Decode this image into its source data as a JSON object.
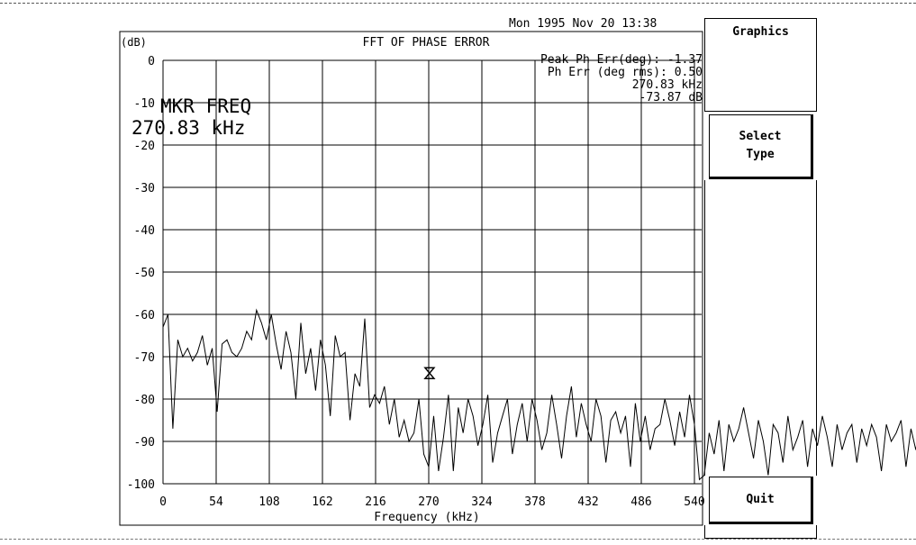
{
  "datetime": "Mon 1995 Nov 20 13:38",
  "softkeys": {
    "menu_title": "Graphics",
    "select_line1": "Select",
    "select_line2": "Type",
    "quit": "Quit"
  },
  "readouts": {
    "peak": "Peak Ph Err(deg): -1.37",
    "rms": "Ph Err (deg rms):  0.50",
    "marker_freq": "270.83 kHz",
    "marker_level": "-73.87 dB"
  },
  "marker": {
    "label": "MKR FREQ",
    "value": "270.83 kHz",
    "x": 270.83,
    "y": -73.87
  },
  "chart_data": {
    "type": "line",
    "title": "FFT OF PHASE ERROR",
    "xlabel": "Frequency (kHz)",
    "ylabel": "(dB)",
    "xlim": [
      0,
      550
    ],
    "ylim": [
      -100,
      0
    ],
    "x_ticks": [
      0,
      54,
      108,
      162,
      216,
      270,
      324,
      378,
      432,
      486,
      540
    ],
    "y_ticks": [
      0,
      -10,
      -20,
      -30,
      -40,
      -50,
      -60,
      -70,
      -80,
      -90,
      -100
    ],
    "y_tick_labels": [
      "0",
      "-10",
      "-20",
      "-30",
      "-40",
      "-50",
      "-60",
      "-70",
      "-80",
      "-90",
      "-100"
    ],
    "grid": true,
    "x_step": 5,
    "y": [
      -63,
      -60,
      -87,
      -66,
      -70,
      -68,
      -71,
      -69,
      -65,
      -72,
      -68,
      -83,
      -67,
      -66,
      -69,
      -70,
      -68,
      -64,
      -66,
      -59,
      -62,
      -66,
      -60,
      -67,
      -73,
      -64,
      -69,
      -80,
      -62,
      -74,
      -68,
      -78,
      -66,
      -72,
      -84,
      -65,
      -70,
      -69,
      -85,
      -74,
      -77,
      -61,
      -82,
      -79,
      -81,
      -77,
      -86,
      -80,
      -89,
      -85,
      -90,
      -88,
      -80,
      -93,
      -96,
      -84,
      -97,
      -89,
      -79,
      -97,
      -82,
      -88,
      -80,
      -84,
      -91,
      -86,
      -79,
      -95,
      -88,
      -84,
      -80,
      -93,
      -86,
      -81,
      -90,
      -80,
      -85,
      -92,
      -88,
      -79,
      -86,
      -94,
      -84,
      -77,
      -89,
      -81,
      -86,
      -90,
      -80,
      -84,
      -95,
      -85,
      -83,
      -88,
      -84,
      -96,
      -81,
      -90,
      -84,
      -92,
      -87,
      -86,
      -80,
      -85,
      -91,
      -83,
      -89,
      -79,
      -86,
      -99,
      -98,
      -88,
      -93,
      -85,
      -97,
      -86,
      -90,
      -87,
      -82,
      -88,
      -94,
      -85,
      -90,
      -98,
      -86,
      -88,
      -95,
      -84,
      -92,
      -89,
      -85,
      -96,
      -87,
      -91,
      -84,
      -89,
      -96,
      -86,
      -92,
      -88,
      -86,
      -95,
      -87,
      -91,
      -86,
      -89,
      -97,
      -86,
      -90,
      -88,
      -85,
      -96,
      -87,
      -92,
      -85,
      -89,
      -95,
      -86,
      -90,
      -88,
      -86,
      -97,
      -88,
      -93,
      -85,
      -90,
      -96,
      -86,
      -91,
      -88,
      -95,
      -86,
      -90,
      -87,
      -94,
      -86,
      -91,
      -89,
      -85,
      -96,
      -88,
      -92,
      -86,
      -90,
      -95,
      -87,
      -91,
      -86,
      -89,
      -97,
      -86,
      -92,
      -87,
      -90,
      -95,
      -86,
      -91,
      -88,
      -94,
      -86,
      -90,
      -87,
      -95,
      -86,
      -92,
      -88,
      -90,
      -96,
      -86,
      -91,
      -87,
      -93,
      -88,
      -90,
      -95,
      -86,
      -92,
      -88,
      -91,
      -96,
      -87,
      -90,
      -88,
      -93,
      -86,
      -91,
      -89,
      -95,
      -87,
      -91,
      -88,
      -94,
      -86,
      -92,
      -88,
      -90,
      -96,
      -86,
      -91,
      -87,
      -93,
      -88,
      -90,
      -95,
      -86,
      -92,
      -88,
      -91,
      -96,
      -87,
      -90,
      -88,
      -93,
      -86,
      -91,
      -89,
      -95,
      -87,
      -91,
      -88,
      -94,
      -86,
      -92,
      -88,
      -90,
      -96,
      -86,
      -91,
      -87,
      -93,
      -88,
      -90,
      -95,
      -86,
      -92,
      -88,
      -91,
      -96,
      -87,
      -90,
      -88,
      -93,
      -86,
      -91,
      -89,
      -95,
      -87,
      -91,
      -88,
      -94,
      -86,
      -92,
      -88,
      -90,
      -96,
      -86,
      -91,
      -87,
      -93,
      -88,
      -90,
      -95,
      -86,
      -92,
      -88,
      -91,
      -96,
      -87,
      -90,
      -88,
      -93,
      -86
    ]
  }
}
